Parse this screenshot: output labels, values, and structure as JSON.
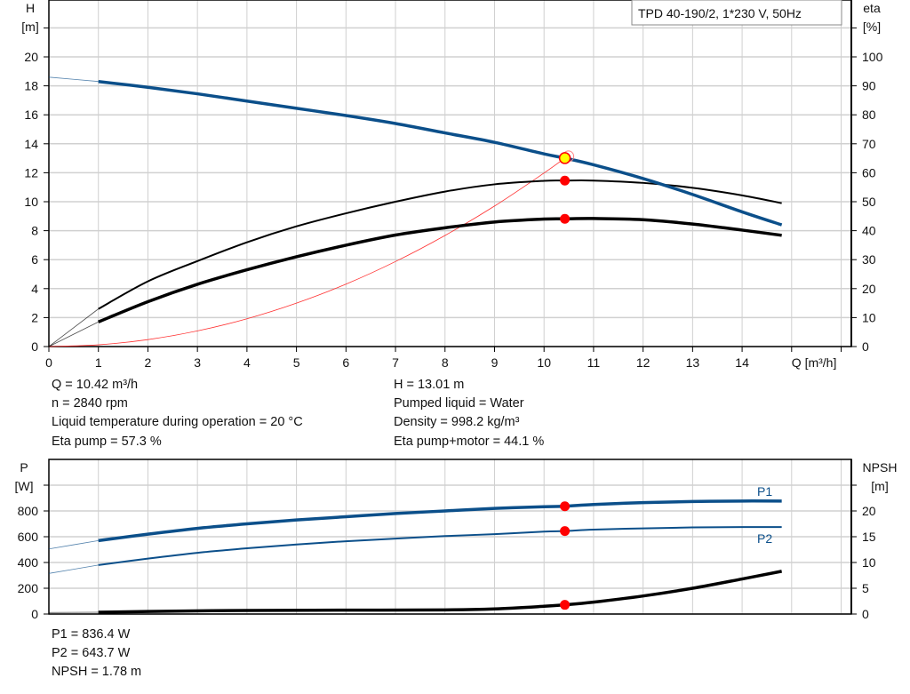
{
  "title": "TPD 40-190/2, 1*230 V, 50Hz",
  "colors": {
    "head": "#0b4f8a",
    "power": "#0b4f8a",
    "efficiency": "#000000",
    "npsh": "#000000",
    "system": "#ff3030",
    "duty_point": "#ff0000",
    "duty_point_fill": "#ffff00",
    "grid": "#d0d0d0"
  },
  "info": {
    "q": "Q = 10.42 m³/h",
    "h": "H = 13.01 m",
    "n": "n = 2840 rpm",
    "liquid": "Pumped liquid = Water",
    "temp": "Liquid temperature during operation = 20 °C",
    "density": "Density = 998.2 kg/m³",
    "eta_pump": "Eta pump = 57.3 %",
    "eta_total": "Eta pump+motor = 44.1 %",
    "p1": "P1 = 836.4 W",
    "p2": "P2 = 643.7 W",
    "npsh": "NPSH = 1.78 m"
  },
  "chart_data": [
    {
      "type": "line",
      "title": "TPD 40-190/2, 1*230 V, 50Hz",
      "xlabel": "Q [m³/h]",
      "ylabel": "H [m]",
      "ylabel2": "eta [%]",
      "xlim": [
        0,
        16
      ],
      "ylim": [
        0,
        22
      ],
      "ylim2": [
        0,
        110
      ],
      "xticks": [
        0,
        1,
        2,
        3,
        4,
        5,
        6,
        7,
        8,
        9,
        10,
        11,
        12,
        13,
        14
      ],
      "yticks": [
        0,
        2,
        4,
        6,
        8,
        10,
        12,
        14,
        16,
        18,
        20
      ],
      "yticks2": [
        0,
        10,
        20,
        30,
        40,
        50,
        60,
        70,
        80,
        90,
        100
      ],
      "grid": true,
      "series": [
        {
          "id": "H",
          "axis": "left",
          "x": [
            0,
            1,
            2,
            3,
            4,
            5,
            6,
            7,
            8,
            9,
            10,
            10.42,
            11,
            12,
            13,
            14,
            14.8
          ],
          "y": [
            18.6,
            18.3,
            17.9,
            17.45,
            16.95,
            16.45,
            15.95,
            15.4,
            14.75,
            14.1,
            13.3,
            13.01,
            12.55,
            11.6,
            10.5,
            9.3,
            8.4
          ]
        },
        {
          "id": "eta_pump",
          "axis": "right",
          "x": [
            0,
            1,
            2,
            3,
            4,
            5,
            6,
            7,
            8,
            9,
            10,
            10.42,
            11,
            12,
            13,
            14,
            14.8
          ],
          "y": [
            0,
            13,
            22.5,
            29.5,
            36,
            41.5,
            46,
            50,
            53.5,
            56,
            57.2,
            57.3,
            57.3,
            56.5,
            54.8,
            52.2,
            49.5
          ]
        },
        {
          "id": "eta_pump_motor",
          "axis": "right",
          "x": [
            0,
            1,
            2,
            3,
            4,
            5,
            6,
            7,
            8,
            9,
            10,
            10.42,
            11,
            12,
            13,
            14,
            14.8
          ],
          "y": [
            0,
            8.5,
            15.5,
            21.5,
            26.5,
            31,
            35,
            38.5,
            41,
            43,
            44,
            44.1,
            44.2,
            43.8,
            42.3,
            40.2,
            38.4
          ]
        },
        {
          "id": "system",
          "axis": "left",
          "x": [
            0,
            1,
            2,
            3,
            4,
            5,
            6,
            7,
            8,
            9,
            10,
            10.42,
            10.5
          ],
          "y": [
            0,
            0.12,
            0.48,
            1.08,
            1.92,
            3.0,
            4.31,
            5.87,
            7.67,
            9.7,
            11.98,
            13.01,
            13.21
          ]
        }
      ],
      "duty_point": {
        "q": 10.42,
        "h": 13.01,
        "eta_pump": 57.3,
        "eta_pump_motor": 44.1
      }
    },
    {
      "type": "line",
      "ylabel": "P [W]",
      "ylabel2": "NPSH [m]",
      "xlim": [
        0,
        16
      ],
      "ylim": [
        0,
        1000
      ],
      "ylim2": [
        0,
        25
      ],
      "yticks": [
        0,
        200,
        400,
        600,
        800
      ],
      "yticks2": [
        0,
        5,
        10,
        15,
        20
      ],
      "grid": true,
      "series": [
        {
          "id": "P1",
          "name": "P1",
          "axis": "left",
          "x": [
            0,
            1,
            2,
            3,
            4,
            5,
            6,
            7,
            8,
            9,
            10,
            10.42,
            11,
            12,
            13,
            14,
            14.8
          ],
          "y": [
            505,
            570,
            620,
            665,
            700,
            730,
            755,
            780,
            800,
            820,
            833,
            836.4,
            850,
            865,
            873,
            877,
            877
          ]
        },
        {
          "id": "P2",
          "name": "P2",
          "axis": "left",
          "x": [
            0,
            1,
            2,
            3,
            4,
            5,
            6,
            7,
            8,
            9,
            10,
            10.42,
            11,
            12,
            13,
            14,
            14.8
          ],
          "y": [
            315,
            380,
            430,
            475,
            510,
            540,
            565,
            585,
            605,
            620,
            640,
            643.7,
            655,
            665,
            672,
            675,
            675
          ]
        },
        {
          "id": "NPSH",
          "axis": "right",
          "x": [
            0,
            1,
            2,
            4,
            6,
            8,
            9,
            10,
            10.42,
            11,
            12,
            13,
            14,
            14.8
          ],
          "y": [
            0.3,
            0.35,
            0.5,
            0.7,
            0.75,
            0.8,
            1.0,
            1.5,
            1.78,
            2.3,
            3.5,
            5.0,
            6.8,
            8.3
          ]
        }
      ],
      "duty_point": {
        "q": 10.42,
        "p1": 836.4,
        "p2": 643.7,
        "npsh": 1.78
      }
    }
  ]
}
